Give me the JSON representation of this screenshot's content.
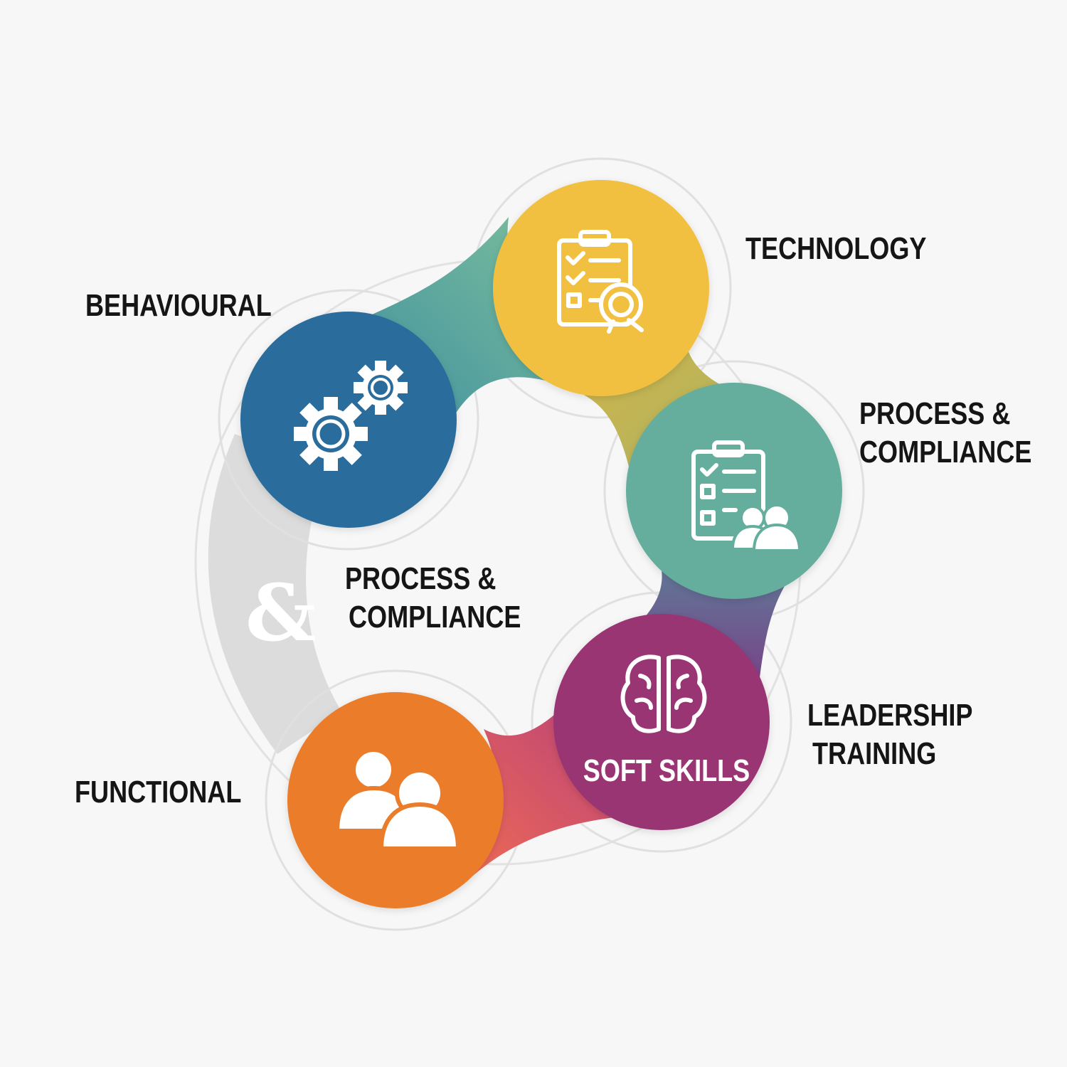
{
  "ampersand": "&",
  "labels": {
    "behavioural": "BEHAVIOURAL",
    "technology": "TECHNOLOGY",
    "process_right": [
      "PROCESS &",
      "COMPLIANCE"
    ],
    "process_center": [
      "PROCESS &",
      "COMPLIANCE"
    ],
    "leadership": [
      "LEADERSHIP",
      "TRAINING"
    ],
    "functional": "FUNCTIONAL",
    "soft_skills": "SOFT SKILLS"
  },
  "nodes": [
    {
      "id": "behavioural",
      "color": "#2b6c9b",
      "icon": "gears-icon"
    },
    {
      "id": "technology",
      "color": "#f2c041",
      "icon": "clipboard-checklist-badge-icon"
    },
    {
      "id": "process-compliance",
      "color": "#65ae9d",
      "icon": "clipboard-people-icon"
    },
    {
      "id": "leadership-soft-skills",
      "color": "#993473",
      "icon": "brain-icon"
    },
    {
      "id": "functional",
      "color": "#ea7b2c",
      "icon": "people-icon"
    }
  ],
  "connectors": [
    {
      "from": "behavioural",
      "to": "technology",
      "color": "#5aa399"
    },
    {
      "from": "technology",
      "to": "process-compliance",
      "color": "#c9b04a"
    },
    {
      "from": "process-compliance",
      "to": "leadership-soft-skills",
      "color": "#6a4f8c"
    },
    {
      "from": "leadership-soft-skills",
      "to": "functional",
      "color": "#d1506a"
    }
  ]
}
